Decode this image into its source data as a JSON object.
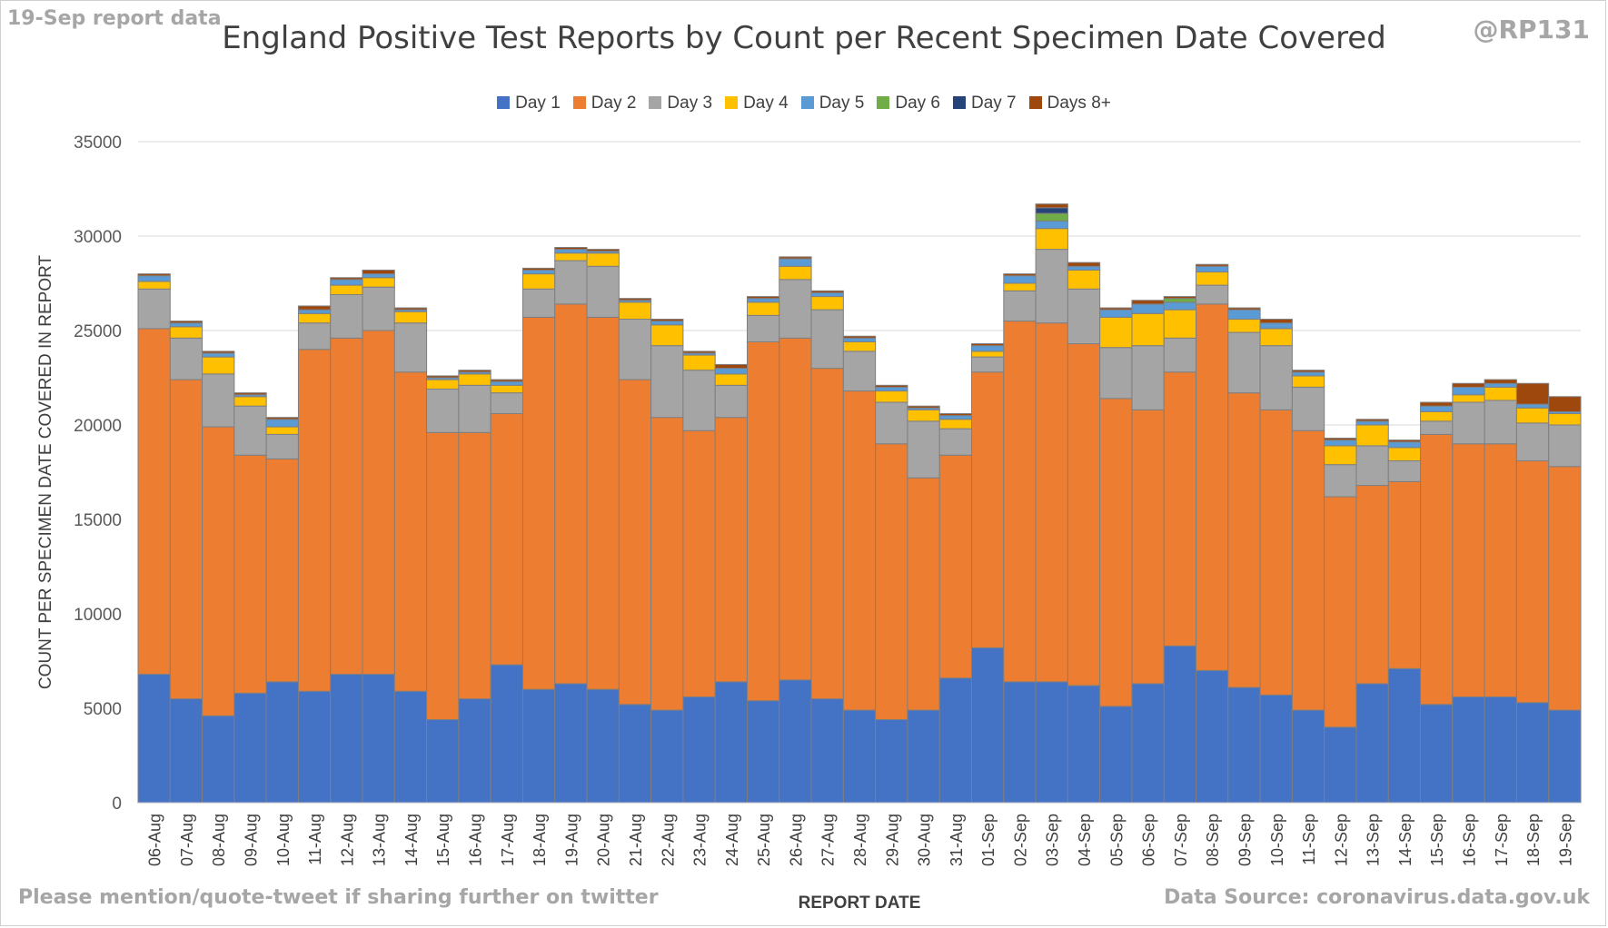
{
  "header": {
    "report_date_label": "19-Sep report data",
    "handle": "@RP131"
  },
  "footer": {
    "left_text": "Please mention/quote-tweet if sharing further on twitter",
    "right_text": "Data Source: coronavirus.data.gov.uk"
  },
  "colors": {
    "Day 1": "#4472c4",
    "Day 2": "#ed7d31",
    "Day 3": "#a5a5a5",
    "Day 4": "#ffc000",
    "Day 5": "#5b9bd5",
    "Day 6": "#70ad47",
    "Day 7": "#264478",
    "Days 8+": "#9e480e"
  },
  "chart_data": {
    "type": "bar",
    "stacked": true,
    "title": "England Positive Test Reports by Count per Recent Specimen Date Covered",
    "xlabel": "REPORT DATE",
    "ylabel": "COUNT PER SPECIMEN DATE COVERED IN REPORT",
    "ylim": [
      0,
      35000
    ],
    "yticks": [
      0,
      5000,
      10000,
      15000,
      20000,
      25000,
      30000,
      35000
    ],
    "grid": true,
    "legend_position": "top",
    "categories": [
      "06-Aug",
      "07-Aug",
      "08-Aug",
      "09-Aug",
      "10-Aug",
      "11-Aug",
      "12-Aug",
      "13-Aug",
      "14-Aug",
      "15-Aug",
      "16-Aug",
      "17-Aug",
      "18-Aug",
      "19-Aug",
      "20-Aug",
      "21-Aug",
      "22-Aug",
      "23-Aug",
      "24-Aug",
      "25-Aug",
      "26-Aug",
      "27-Aug",
      "28-Aug",
      "29-Aug",
      "30-Aug",
      "31-Aug",
      "01-Sep",
      "02-Sep",
      "03-Sep",
      "04-Sep",
      "05-Sep",
      "06-Sep",
      "07-Sep",
      "08-Sep",
      "09-Sep",
      "10-Sep",
      "11-Sep",
      "12-Sep",
      "13-Sep",
      "14-Sep",
      "15-Sep",
      "16-Sep",
      "17-Sep",
      "18-Sep",
      "19-Sep"
    ],
    "series": [
      {
        "name": "Day 1",
        "values": [
          6800,
          5500,
          4600,
          5800,
          6400,
          5900,
          6800,
          6800,
          5900,
          4400,
          5500,
          7300,
          6000,
          6300,
          6000,
          5200,
          4900,
          5600,
          6400,
          5400,
          6500,
          5500,
          4900,
          4400,
          4900,
          6600,
          8200,
          6400,
          6400,
          6200,
          5100,
          6300,
          8300,
          7000,
          6100,
          5700,
          4900,
          4000,
          6300,
          7100,
          5200,
          5600,
          5600,
          5300,
          4900
        ]
      },
      {
        "name": "Day 2",
        "values": [
          18300,
          16900,
          15300,
          12600,
          11800,
          18100,
          17800,
          18200,
          16900,
          15200,
          14100,
          13300,
          19700,
          20100,
          19700,
          17200,
          15500,
          14100,
          14000,
          19000,
          18100,
          17500,
          16900,
          14600,
          12300,
          11800,
          14600,
          19100,
          19000,
          18100,
          16300,
          14500,
          14500,
          19400,
          15600,
          15100,
          14800,
          12200,
          10500,
          9900,
          14300,
          13400,
          13400,
          12800,
          12900
        ]
      },
      {
        "name": "Day 3",
        "values": [
          2100,
          2200,
          2800,
          2600,
          1300,
          1400,
          2300,
          2300,
          2600,
          2300,
          2500,
          1100,
          1500,
          2300,
          2700,
          3200,
          3800,
          3200,
          1700,
          1400,
          3100,
          3100,
          2100,
          2200,
          3000,
          1400,
          800,
          1600,
          3900,
          2900,
          2700,
          3400,
          1800,
          1000,
          3200,
          3400,
          2300,
          1700,
          2100,
          1100,
          700,
          2200,
          2300,
          2000,
          2200
        ]
      },
      {
        "name": "Day 4",
        "values": [
          400,
          600,
          900,
          500,
          400,
          500,
          500,
          500,
          600,
          500,
          600,
          400,
          800,
          400,
          700,
          900,
          1100,
          800,
          600,
          700,
          700,
          700,
          500,
          600,
          600,
          500,
          300,
          400,
          1100,
          1000,
          1600,
          1700,
          1500,
          700,
          700,
          900,
          600,
          1000,
          1100,
          700,
          500,
          400,
          700,
          800,
          600
        ]
      },
      {
        "name": "Day 5",
        "values": [
          300,
          200,
          200,
          100,
          400,
          200,
          300,
          200,
          100,
          100,
          100,
          200,
          200,
          200,
          100,
          100,
          200,
          100,
          300,
          200,
          400,
          200,
          200,
          200,
          100,
          200,
          300,
          400,
          400,
          200,
          400,
          500,
          400,
          300,
          500,
          300,
          200,
          300,
          200,
          300,
          300,
          400,
          200,
          200,
          100
        ]
      },
      {
        "name": "Day 6",
        "values": [
          0,
          0,
          0,
          0,
          0,
          0,
          0,
          0,
          0,
          0,
          0,
          0,
          0,
          0,
          0,
          0,
          0,
          0,
          0,
          0,
          0,
          0,
          0,
          0,
          0,
          0,
          0,
          0,
          400,
          0,
          0,
          0,
          200,
          0,
          0,
          0,
          0,
          0,
          0,
          0,
          0,
          0,
          0,
          0,
          0
        ]
      },
      {
        "name": "Day 7",
        "values": [
          0,
          0,
          0,
          0,
          0,
          0,
          0,
          0,
          0,
          0,
          0,
          0,
          0,
          0,
          0,
          0,
          0,
          0,
          0,
          0,
          0,
          0,
          0,
          0,
          0,
          0,
          0,
          0,
          300,
          0,
          0,
          0,
          0,
          0,
          0,
          0,
          0,
          0,
          0,
          0,
          0,
          0,
          0,
          0,
          0
        ]
      },
      {
        "name": "Days 8+",
        "values": [
          100,
          100,
          100,
          100,
          100,
          200,
          100,
          200,
          100,
          100,
          100,
          100,
          100,
          100,
          100,
          100,
          100,
          100,
          200,
          100,
          100,
          100,
          100,
          100,
          100,
          100,
          100,
          100,
          200,
          200,
          100,
          200,
          100,
          100,
          100,
          200,
          100,
          100,
          100,
          100,
          200,
          200,
          200,
          1100,
          800
        ]
      }
    ]
  }
}
